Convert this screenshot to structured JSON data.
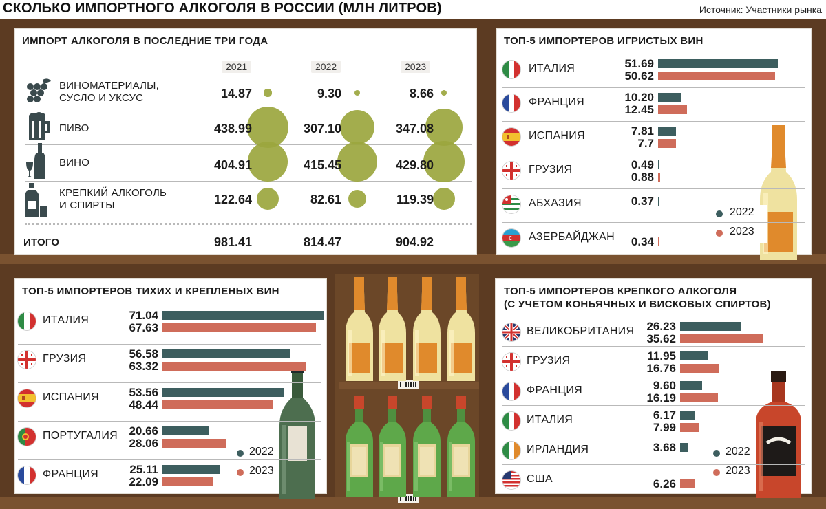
{
  "header": {
    "title": "СКОЛЬКО ИМПОРТНОГО АЛКОГОЛЯ В РОССИИ (МЛН ЛИТРОВ)",
    "source": "Источник: Участники рынка"
  },
  "colors": {
    "y2022": "#3d5e5f",
    "y2023": "#cf6c5a",
    "bubble": "#9ba63e",
    "shelf": "#5c3b22"
  },
  "legend": {
    "y2022": "2022",
    "y2023": "2023"
  },
  "import_panel": {
    "title": "ИМПОРТ АЛКОГОЛЯ В ПОСЛЕДНИЕ ТРИ ГОДА",
    "years": [
      "2021",
      "2022",
      "2023"
    ],
    "rows": [
      {
        "label1": "ВИНОМАТЕРИАЛЫ,",
        "label2": "СУСЛО И УКСУС",
        "icon": "grapes-icon",
        "v2021": "14.87",
        "v2022": "9.30",
        "v2023": "8.66"
      },
      {
        "label1": "ПИВО",
        "label2": "",
        "icon": "beer-mug-icon",
        "v2021": "438.99",
        "v2022": "307.10",
        "v2023": "347.08"
      },
      {
        "label1": "ВИНО",
        "label2": "",
        "icon": "wine-bottle-icon",
        "v2021": "404.91",
        "v2022": "415.45",
        "v2023": "429.80"
      },
      {
        "label1": "КРЕПКИЙ АЛКОГОЛЬ",
        "label2": "И СПИРТЫ",
        "icon": "spirits-bottle-icon",
        "v2021": "122.64",
        "v2022": "82.61",
        "v2023": "119.39"
      }
    ],
    "total": {
      "label": "ИТОГО",
      "v2021": "981.41",
      "v2022": "814.47",
      "v2023": "904.92"
    }
  },
  "sparkling_panel": {
    "title": "ТОП-5 ИМПОРТЕРОВ ИГРИСТЫХ ВИН",
    "rows": [
      {
        "country": "ИТАЛИЯ",
        "flag": "italy-flag-icon",
        "v2022": "51.69",
        "v2023": "50.62"
      },
      {
        "country": "ФРАНЦИЯ",
        "flag": "france-flag-icon",
        "v2022": "10.20",
        "v2023": "12.45"
      },
      {
        "country": "ИСПАНИЯ",
        "flag": "spain-flag-icon",
        "v2022": "7.81",
        "v2023": "7.7"
      },
      {
        "country": "ГРУЗИЯ",
        "flag": "georgia-flag-icon",
        "v2022": "0.49",
        "v2023": "0.88"
      },
      {
        "country": "АБХАЗИЯ",
        "flag": "abkhazia-flag-icon",
        "v2022": "0.37",
        "v2023": ""
      },
      {
        "country": "АЗЕРБАЙДЖАН",
        "flag": "azerbaijan-flag-icon",
        "v2022": "",
        "v2023": "0.34"
      }
    ]
  },
  "still_panel": {
    "title": "ТОП-5 ИМПОРТЕРОВ ТИХИХ И КРЕПЛЕНЫХ ВИН",
    "rows": [
      {
        "country": "ИТАЛИЯ",
        "flag": "italy-flag-icon",
        "v2022": "71.04",
        "v2023": "67.63"
      },
      {
        "country": "ГРУЗИЯ",
        "flag": "georgia-flag-icon",
        "v2022": "56.58",
        "v2023": "63.32"
      },
      {
        "country": "ИСПАНИЯ",
        "flag": "spain-flag-icon",
        "v2022": "53.56",
        "v2023": "48.44"
      },
      {
        "country": "ПОРТУГАЛИЯ",
        "flag": "portugal-flag-icon",
        "v2022": "20.66",
        "v2023": "28.06"
      },
      {
        "country": "ФРАНЦИЯ",
        "flag": "france-flag-icon",
        "v2022": "25.11",
        "v2023": "22.09"
      }
    ]
  },
  "spirits_panel": {
    "title1": "ТОП-5 ИМПОРТЕРОВ КРЕПКОГО АЛКОГОЛЯ",
    "title2": "(С УЧЕТОМ КОНЬЯЧНЫХ И ВИСКОВЫХ СПИРТОВ)",
    "rows": [
      {
        "country": "ВЕЛИКОБРИТАНИЯ",
        "flag": "uk-flag-icon",
        "v2022": "26.23",
        "v2023": "35.62"
      },
      {
        "country": "ГРУЗИЯ",
        "flag": "georgia-flag-icon",
        "v2022": "11.95",
        "v2023": "16.76"
      },
      {
        "country": "ФРАНЦИЯ",
        "flag": "france-flag-icon",
        "v2022": "9.60",
        "v2023": "16.19"
      },
      {
        "country": "ИТАЛИЯ",
        "flag": "italy-flag-icon",
        "v2022": "6.17",
        "v2023": "7.99"
      },
      {
        "country": "ИРЛАНДИЯ",
        "flag": "ireland-flag-icon",
        "v2022": "3.68",
        "v2023": ""
      },
      {
        "country": "США",
        "flag": "usa-flag-icon",
        "v2022": "",
        "v2023": "6.26"
      }
    ]
  },
  "chart_data": [
    {
      "type": "table",
      "title": "ИМПОРТ АЛКОГОЛЯ В ПОСЛЕДНИЕ ТРИ ГОДА",
      "columns": [
        "2021",
        "2022",
        "2023"
      ],
      "rows": [
        "ВИНОМАТЕРИАЛЫ, СУСЛО И УКСУС",
        "ПИВО",
        "ВИНО",
        "КРЕПКИЙ АЛКОГОЛЬ И СПИРТЫ",
        "ИТОГО"
      ],
      "values": [
        [
          14.87,
          9.3,
          8.66
        ],
        [
          438.99,
          307.1,
          347.08
        ],
        [
          404.91,
          415.45,
          429.8
        ],
        [
          122.64,
          82.61,
          119.39
        ],
        [
          981.41,
          814.47,
          904.92
        ]
      ]
    },
    {
      "type": "bar",
      "orientation": "horizontal",
      "title": "ТОП-5 ИМПОРТЕРОВ ИГРИСТЫХ ВИН",
      "categories": [
        "ИТАЛИЯ",
        "ФРАНЦИЯ",
        "ИСПАНИЯ",
        "ГРУЗИЯ",
        "АБХАЗИЯ",
        "АЗЕРБАЙДЖАН"
      ],
      "series": [
        {
          "name": "2022",
          "values": [
            51.69,
            10.2,
            7.81,
            0.49,
            0.37,
            null
          ]
        },
        {
          "name": "2023",
          "values": [
            50.62,
            12.45,
            7.7,
            0.88,
            null,
            0.34
          ]
        }
      ]
    },
    {
      "type": "bar",
      "orientation": "horizontal",
      "title": "ТОП-5 ИМПОРТЕРОВ ТИХИХ И КРЕПЛЕНЫХ ВИН",
      "categories": [
        "ИТАЛИЯ",
        "ГРУЗИЯ",
        "ИСПАНИЯ",
        "ПОРТУГАЛИЯ",
        "ФРАНЦИЯ"
      ],
      "series": [
        {
          "name": "2022",
          "values": [
            71.04,
            56.58,
            53.56,
            20.66,
            25.11
          ]
        },
        {
          "name": "2023",
          "values": [
            67.63,
            63.32,
            48.44,
            28.06,
            22.09
          ]
        }
      ]
    },
    {
      "type": "bar",
      "orientation": "horizontal",
      "title": "ТОП-5 ИМПОРТЕРОВ КРЕПКОГО АЛКОГОЛЯ (С УЧЕТОМ КОНЬЯЧНЫХ И ВИСКОВЫХ СПИРТОВ)",
      "categories": [
        "ВЕЛИКОБРИТАНИЯ",
        "ГРУЗИЯ",
        "ФРАНЦИЯ",
        "ИТАЛИЯ",
        "ИРЛАНДИЯ",
        "США"
      ],
      "series": [
        {
          "name": "2022",
          "values": [
            26.23,
            11.95,
            9.6,
            6.17,
            3.68,
            null
          ]
        },
        {
          "name": "2023",
          "values": [
            35.62,
            16.76,
            16.19,
            7.99,
            null,
            6.26
          ]
        }
      ]
    }
  ]
}
